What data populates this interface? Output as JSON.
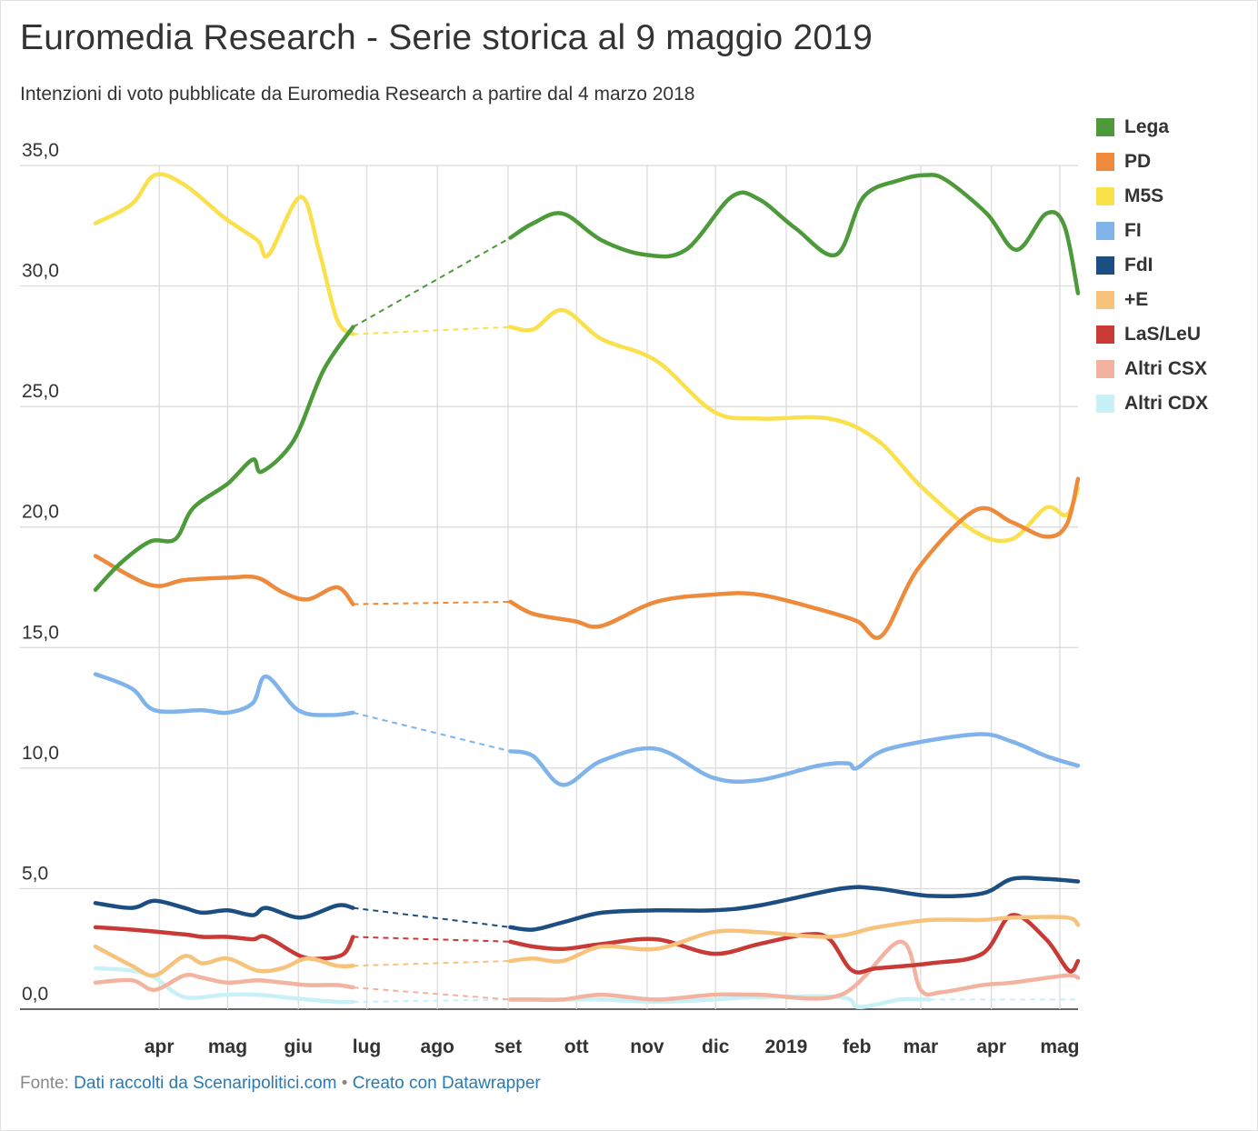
{
  "header": {
    "title": "Euromedia Research - Serie storica al 9 maggio 2019",
    "subtitle": "Intenzioni di voto pubblicate da Euromedia Research a partire dal 4 marzo 2018"
  },
  "footer": {
    "source_prefix": "Fonte:",
    "source_link": "Dati raccolti da Scenaripolitici.com",
    "separator": "•",
    "made_with": "Creato con Datawrapper"
  },
  "chart_data": {
    "type": "line",
    "title": "Euromedia Research - Serie storica al 9 maggio 2019",
    "subtitle": "Intenzioni di voto pubblicate da Euromedia Research a partire dal 4 marzo 2018",
    "xlabel": "",
    "ylabel": "",
    "ylim": [
      0,
      35
    ],
    "yticks": [
      "0,0",
      "5,0",
      "10,0",
      "15,0",
      "20,0",
      "25,0",
      "30,0",
      "35,0"
    ],
    "ytick_values": [
      0,
      5,
      10,
      15,
      20,
      25,
      30,
      35
    ],
    "xticks": [
      {
        "label": "apr",
        "date": "2018-04-01"
      },
      {
        "label": "mag",
        "date": "2018-05-01"
      },
      {
        "label": "giu",
        "date": "2018-06-01"
      },
      {
        "label": "lug",
        "date": "2018-07-01"
      },
      {
        "label": "ago",
        "date": "2018-08-01"
      },
      {
        "label": "set",
        "date": "2018-09-01"
      },
      {
        "label": "ott",
        "date": "2018-10-01"
      },
      {
        "label": "nov",
        "date": "2018-11-01"
      },
      {
        "label": "dic",
        "date": "2018-12-01"
      },
      {
        "label": "2019",
        "date": "2019-01-01"
      },
      {
        "label": "feb",
        "date": "2019-02-01"
      },
      {
        "label": "mar",
        "date": "2019-03-01"
      },
      {
        "label": "apr",
        "date": "2019-04-01"
      },
      {
        "label": "mag",
        "date": "2019-05-01"
      }
    ],
    "xlim": [
      "2018-03-04",
      "2019-05-09"
    ],
    "grid": true,
    "legend_position": "right",
    "series": [
      {
        "name": "Lega",
        "color": "#4d9a3a",
        "points": [
          [
            "2018-03-04",
            17.4
          ],
          [
            "2018-03-15",
            18.5
          ],
          [
            "2018-03-28",
            19.4
          ],
          [
            "2018-04-08",
            19.5
          ],
          [
            "2018-04-16",
            20.8
          ],
          [
            "2018-05-01",
            21.8
          ],
          [
            "2018-05-12",
            22.8
          ],
          [
            "2018-05-16",
            22.3
          ],
          [
            "2018-05-30",
            23.6
          ],
          [
            "2018-06-12",
            26.5
          ],
          [
            "2018-06-25",
            28.3
          ],
          [
            "2018-09-02",
            32.0
          ],
          [
            "2018-09-12",
            32.6
          ],
          [
            "2018-09-25",
            33.0
          ],
          [
            "2018-10-12",
            31.9
          ],
          [
            "2018-10-31",
            31.3
          ],
          [
            "2018-11-18",
            31.5
          ],
          [
            "2018-12-08",
            33.7
          ],
          [
            "2018-12-20",
            33.6
          ],
          [
            "2019-01-05",
            32.4
          ],
          [
            "2019-01-23",
            31.3
          ],
          [
            "2019-02-04",
            33.7
          ],
          [
            "2019-02-20",
            34.4
          ],
          [
            "2019-03-03",
            34.6
          ],
          [
            "2019-03-12",
            34.4
          ],
          [
            "2019-03-30",
            33.0
          ],
          [
            "2019-04-12",
            31.5
          ],
          [
            "2019-04-25",
            33.0
          ],
          [
            "2019-05-03",
            32.5
          ],
          [
            "2019-05-09",
            29.7
          ]
        ]
      },
      {
        "name": "PD",
        "color": "#ee8a3b",
        "points": [
          [
            "2018-03-04",
            18.8
          ],
          [
            "2018-03-28",
            17.6
          ],
          [
            "2018-04-12",
            17.8
          ],
          [
            "2018-05-01",
            17.9
          ],
          [
            "2018-05-14",
            17.9
          ],
          [
            "2018-05-25",
            17.3
          ],
          [
            "2018-06-05",
            17.0
          ],
          [
            "2018-06-18",
            17.5
          ],
          [
            "2018-06-25",
            16.8
          ],
          [
            "2018-09-02",
            16.9
          ],
          [
            "2018-09-12",
            16.4
          ],
          [
            "2018-09-30",
            16.1
          ],
          [
            "2018-10-12",
            15.9
          ],
          [
            "2018-11-05",
            16.9
          ],
          [
            "2018-11-30",
            17.2
          ],
          [
            "2018-12-20",
            17.2
          ],
          [
            "2019-01-15",
            16.6
          ],
          [
            "2019-02-01",
            16.1
          ],
          [
            "2019-02-12",
            15.5
          ],
          [
            "2019-02-28",
            18.3
          ],
          [
            "2019-03-25",
            20.7
          ],
          [
            "2019-04-10",
            20.2
          ],
          [
            "2019-04-25",
            19.6
          ],
          [
            "2019-05-04",
            20.1
          ],
          [
            "2019-05-09",
            22.0
          ]
        ]
      },
      {
        "name": "M5S",
        "color": "#fae04c",
        "points": [
          [
            "2018-03-04",
            32.6
          ],
          [
            "2018-03-20",
            33.4
          ],
          [
            "2018-03-30",
            34.6
          ],
          [
            "2018-04-12",
            34.2
          ],
          [
            "2018-04-30",
            32.8
          ],
          [
            "2018-05-14",
            31.9
          ],
          [
            "2018-05-19",
            31.3
          ],
          [
            "2018-06-02",
            33.7
          ],
          [
            "2018-06-10",
            31.5
          ],
          [
            "2018-06-18",
            28.6
          ],
          [
            "2018-06-25",
            28.0
          ],
          [
            "2018-09-02",
            28.3
          ],
          [
            "2018-09-12",
            28.2
          ],
          [
            "2018-09-25",
            29.0
          ],
          [
            "2018-10-12",
            27.8
          ],
          [
            "2018-11-05",
            26.9
          ],
          [
            "2018-11-30",
            24.8
          ],
          [
            "2018-12-20",
            24.5
          ],
          [
            "2019-01-20",
            24.5
          ],
          [
            "2019-02-10",
            23.6
          ],
          [
            "2019-03-01",
            21.7
          ],
          [
            "2019-03-25",
            19.8
          ],
          [
            "2019-04-10",
            19.5
          ],
          [
            "2019-04-25",
            20.8
          ],
          [
            "2019-05-04",
            20.5
          ],
          [
            "2019-05-09",
            21.6
          ]
        ]
      },
      {
        "name": "FI",
        "color": "#7fb3ea",
        "points": [
          [
            "2018-03-04",
            13.9
          ],
          [
            "2018-03-20",
            13.3
          ],
          [
            "2018-03-30",
            12.4
          ],
          [
            "2018-04-20",
            12.4
          ],
          [
            "2018-05-01",
            12.3
          ],
          [
            "2018-05-12",
            12.7
          ],
          [
            "2018-05-18",
            13.8
          ],
          [
            "2018-06-01",
            12.4
          ],
          [
            "2018-06-15",
            12.2
          ],
          [
            "2018-06-25",
            12.3
          ],
          [
            "2018-09-02",
            10.7
          ],
          [
            "2018-09-12",
            10.5
          ],
          [
            "2018-09-25",
            9.3
          ],
          [
            "2018-10-12",
            10.3
          ],
          [
            "2018-11-05",
            10.8
          ],
          [
            "2018-11-30",
            9.6
          ],
          [
            "2018-12-20",
            9.5
          ],
          [
            "2019-01-15",
            10.1
          ],
          [
            "2019-01-28",
            10.2
          ],
          [
            "2019-02-01",
            10.0
          ],
          [
            "2019-02-15",
            10.8
          ],
          [
            "2019-03-25",
            11.4
          ],
          [
            "2019-04-10",
            11.1
          ],
          [
            "2019-04-25",
            10.5
          ],
          [
            "2019-05-09",
            10.1
          ]
        ]
      },
      {
        "name": "FdI",
        "color": "#1c4e82",
        "points": [
          [
            "2018-03-04",
            4.4
          ],
          [
            "2018-03-20",
            4.2
          ],
          [
            "2018-03-30",
            4.5
          ],
          [
            "2018-04-12",
            4.2
          ],
          [
            "2018-04-20",
            4.0
          ],
          [
            "2018-05-01",
            4.1
          ],
          [
            "2018-05-12",
            3.9
          ],
          [
            "2018-05-18",
            4.2
          ],
          [
            "2018-06-02",
            3.8
          ],
          [
            "2018-06-18",
            4.3
          ],
          [
            "2018-06-25",
            4.2
          ],
          [
            "2018-09-02",
            3.4
          ],
          [
            "2018-09-12",
            3.3
          ],
          [
            "2018-09-25",
            3.6
          ],
          [
            "2018-10-12",
            4.0
          ],
          [
            "2018-11-05",
            4.1
          ],
          [
            "2018-11-30",
            4.1
          ],
          [
            "2018-12-20",
            4.3
          ],
          [
            "2019-01-25",
            5.0
          ],
          [
            "2019-02-10",
            5.0
          ],
          [
            "2019-03-05",
            4.7
          ],
          [
            "2019-03-28",
            4.8
          ],
          [
            "2019-04-10",
            5.4
          ],
          [
            "2019-04-25",
            5.4
          ],
          [
            "2019-05-09",
            5.3
          ]
        ]
      },
      {
        "name": "+E",
        "color": "#f7c27b",
        "points": [
          [
            "2018-03-04",
            2.6
          ],
          [
            "2018-03-20",
            1.8
          ],
          [
            "2018-03-30",
            1.4
          ],
          [
            "2018-04-12",
            2.2
          ],
          [
            "2018-04-20",
            1.9
          ],
          [
            "2018-05-01",
            2.1
          ],
          [
            "2018-05-14",
            1.6
          ],
          [
            "2018-05-25",
            1.7
          ],
          [
            "2018-06-05",
            2.1
          ],
          [
            "2018-06-18",
            1.8
          ],
          [
            "2018-06-25",
            1.8
          ],
          [
            "2018-09-02",
            2.0
          ],
          [
            "2018-09-12",
            2.1
          ],
          [
            "2018-09-25",
            2.0
          ],
          [
            "2018-10-12",
            2.6
          ],
          [
            "2018-11-05",
            2.5
          ],
          [
            "2018-11-30",
            3.2
          ],
          [
            "2018-12-20",
            3.2
          ],
          [
            "2019-01-20",
            3.0
          ],
          [
            "2019-02-10",
            3.4
          ],
          [
            "2019-03-05",
            3.7
          ],
          [
            "2019-03-28",
            3.7
          ],
          [
            "2019-04-10",
            3.8
          ],
          [
            "2019-05-04",
            3.8
          ],
          [
            "2019-05-09",
            3.5
          ]
        ]
      },
      {
        "name": "LaS/LeU",
        "color": "#c73a35",
        "points": [
          [
            "2018-03-04",
            3.4
          ],
          [
            "2018-03-20",
            3.3
          ],
          [
            "2018-04-12",
            3.1
          ],
          [
            "2018-04-20",
            3.0
          ],
          [
            "2018-05-01",
            3.0
          ],
          [
            "2018-05-12",
            2.9
          ],
          [
            "2018-05-18",
            3.0
          ],
          [
            "2018-06-02",
            2.2
          ],
          [
            "2018-06-12",
            2.1
          ],
          [
            "2018-06-21",
            2.3
          ],
          [
            "2018-06-25",
            3.0
          ],
          [
            "2018-09-02",
            2.8
          ],
          [
            "2018-09-12",
            2.6
          ],
          [
            "2018-09-25",
            2.5
          ],
          [
            "2018-10-12",
            2.7
          ],
          [
            "2018-11-05",
            2.9
          ],
          [
            "2018-11-30",
            2.3
          ],
          [
            "2018-12-20",
            2.7
          ],
          [
            "2019-01-10",
            3.1
          ],
          [
            "2019-01-20",
            2.9
          ],
          [
            "2019-01-30",
            1.6
          ],
          [
            "2019-02-10",
            1.7
          ],
          [
            "2019-03-05",
            1.9
          ],
          [
            "2019-03-28",
            2.3
          ],
          [
            "2019-04-10",
            3.9
          ],
          [
            "2019-04-25",
            2.9
          ],
          [
            "2019-05-05",
            1.6
          ],
          [
            "2019-05-09",
            2.0
          ]
        ]
      },
      {
        "name": "Altri CSX",
        "color": "#f2b3a0",
        "points": [
          [
            "2018-03-04",
            1.1
          ],
          [
            "2018-03-20",
            1.2
          ],
          [
            "2018-03-30",
            0.8
          ],
          [
            "2018-04-12",
            1.4
          ],
          [
            "2018-04-20",
            1.3
          ],
          [
            "2018-05-01",
            1.1
          ],
          [
            "2018-05-14",
            1.2
          ],
          [
            "2018-05-25",
            1.1
          ],
          [
            "2018-06-05",
            1.0
          ],
          [
            "2018-06-18",
            1.0
          ],
          [
            "2018-06-25",
            0.9
          ],
          [
            "2018-09-02",
            0.4
          ],
          [
            "2018-09-12",
            0.4
          ],
          [
            "2018-09-25",
            0.4
          ],
          [
            "2018-10-12",
            0.6
          ],
          [
            "2018-11-05",
            0.4
          ],
          [
            "2018-11-30",
            0.6
          ],
          [
            "2018-12-20",
            0.6
          ],
          [
            "2019-01-25",
            0.6
          ],
          [
            "2019-02-20",
            2.8
          ],
          [
            "2019-03-01",
            0.8
          ],
          [
            "2019-03-10",
            0.7
          ],
          [
            "2019-03-28",
            1.0
          ],
          [
            "2019-04-10",
            1.1
          ],
          [
            "2019-05-04",
            1.4
          ],
          [
            "2019-05-09",
            1.3
          ]
        ]
      },
      {
        "name": "Altri CDX",
        "color": "#c8f1f7",
        "points": [
          [
            "2018-03-04",
            1.7
          ],
          [
            "2018-03-20",
            1.6
          ],
          [
            "2018-03-30",
            1.3
          ],
          [
            "2018-04-12",
            0.5
          ],
          [
            "2018-04-30",
            0.6
          ],
          [
            "2018-05-14",
            0.6
          ],
          [
            "2018-05-25",
            0.5
          ],
          [
            "2018-06-05",
            0.4
          ],
          [
            "2018-06-18",
            0.3
          ],
          [
            "2018-06-25",
            0.3
          ],
          [
            "2018-09-02",
            0.4
          ],
          [
            "2018-09-25",
            0.4
          ],
          [
            "2018-10-12",
            0.4
          ],
          [
            "2018-11-05",
            0.3
          ],
          [
            "2018-11-30",
            0.4
          ],
          [
            "2018-12-20",
            0.5
          ],
          [
            "2019-01-25",
            0.5
          ],
          [
            "2019-02-01",
            0.1
          ],
          [
            "2019-02-10",
            0.2
          ],
          [
            "2019-02-20",
            0.4
          ],
          [
            "2019-03-05",
            0.4
          ],
          [
            "2019-05-09",
            0.4
          ]
        ]
      }
    ]
  }
}
